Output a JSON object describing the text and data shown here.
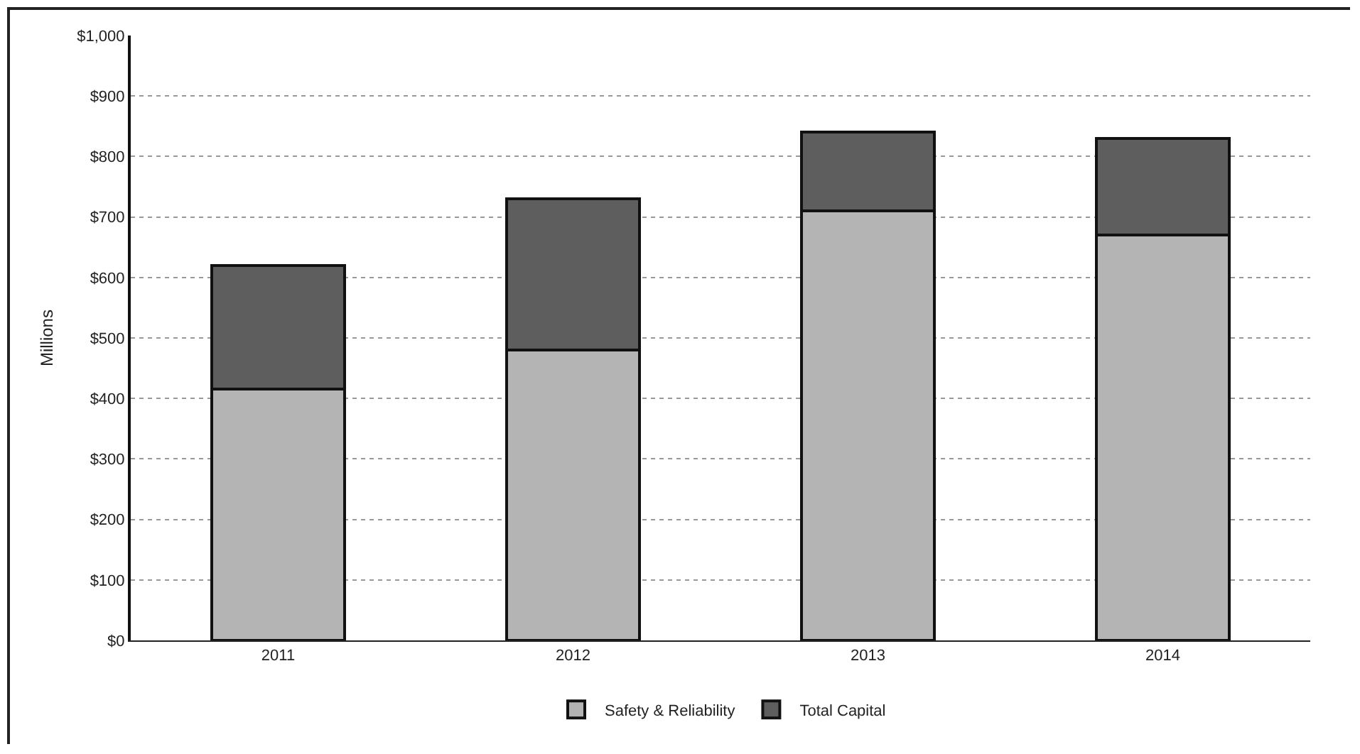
{
  "chart_data": {
    "type": "bar",
    "stacked": true,
    "ylabel": "Millions",
    "categories": [
      "2011",
      "2012",
      "2013",
      "2014"
    ],
    "series": [
      {
        "name": "Safety & Reliability",
        "color": "#b4b4b4",
        "values": [
          415,
          480,
          710,
          670
        ]
      },
      {
        "name": "Total Capital",
        "color": "#5e5e5e",
        "values": [
          205,
          250,
          130,
          160
        ]
      }
    ],
    "ylim": [
      0,
      1000
    ],
    "yticks": [
      {
        "value": 0,
        "label": "$0"
      },
      {
        "value": 100,
        "label": "$100"
      },
      {
        "value": 200,
        "label": "$200"
      },
      {
        "value": 300,
        "label": "$300"
      },
      {
        "value": 400,
        "label": "$400"
      },
      {
        "value": 500,
        "label": "$500"
      },
      {
        "value": 600,
        "label": "$600"
      },
      {
        "value": 700,
        "label": "$700"
      },
      {
        "value": 800,
        "label": "$800"
      },
      {
        "value": 900,
        "label": "$900"
      },
      {
        "value": 1000,
        "label": "$1,000"
      }
    ],
    "grid": "y",
    "legend": "bottom"
  }
}
